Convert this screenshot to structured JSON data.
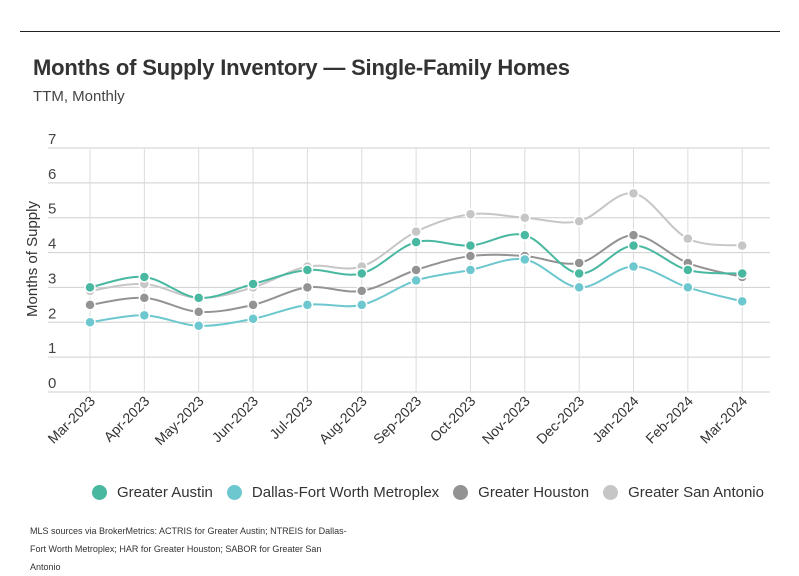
{
  "header": {
    "title": "Months of Supply Inventory — Single-Family Homes",
    "subtitle": "TTM, Monthly"
  },
  "legend": [
    {
      "name": "Greater Austin",
      "color": "#49b8a0"
    },
    {
      "name": "Dallas-Fort Worth Metroplex",
      "color": "#6cc7cf"
    },
    {
      "name": "Greater Houston",
      "color": "#939393"
    },
    {
      "name": "Greater San Antonio",
      "color": "#c6c6c6"
    }
  ],
  "footer": {
    "source": "MLS sources via BrokerMetrics: ACTRIS for Greater Austin; NTREIS for Dallas-Fort Worth Metroplex; HAR for Greater Houston; SABOR for Greater San Antonio"
  },
  "chart_data": {
    "type": "line",
    "title": "Months of Supply Inventory — Single-Family Homes",
    "subtitle": "TTM, Monthly",
    "xlabel": "",
    "ylabel": "Months of Supply",
    "ylim": [
      0,
      7
    ],
    "yticks": [
      "0",
      "1",
      "2",
      "3",
      "4",
      "5",
      "6",
      "7"
    ],
    "grid": true,
    "legend_position": "bottom",
    "categories": [
      "Mar-2023",
      "Apr-2023",
      "May-2023",
      "Jun-2023",
      "Jul-2023",
      "Aug-2023",
      "Sep-2023",
      "Oct-2023",
      "Nov-2023",
      "Dec-2023",
      "Jan-2024",
      "Feb-2024",
      "Mar-2024"
    ],
    "series": [
      {
        "name": "Greater San Antonio",
        "color": "#c6c6c6",
        "values": [
          2.9,
          3.1,
          2.7,
          3.0,
          3.6,
          3.6,
          4.6,
          5.1,
          5.0,
          4.9,
          5.7,
          4.4,
          4.2
        ]
      },
      {
        "name": "Greater Houston",
        "color": "#939393",
        "values": [
          2.5,
          2.7,
          2.3,
          2.5,
          3.0,
          2.9,
          3.5,
          3.9,
          3.9,
          3.7,
          4.5,
          3.7,
          3.3
        ]
      },
      {
        "name": "Dallas-Fort Worth Metroplex",
        "color": "#6cc7cf",
        "values": [
          2.0,
          2.2,
          1.9,
          2.1,
          2.5,
          2.5,
          3.2,
          3.5,
          3.8,
          3.0,
          3.6,
          3.0,
          2.6
        ]
      },
      {
        "name": "Greater Austin",
        "color": "#49b8a0",
        "values": [
          3.0,
          3.3,
          2.7,
          3.1,
          3.5,
          3.4,
          4.3,
          4.2,
          4.5,
          3.4,
          4.2,
          3.5,
          3.4
        ]
      }
    ]
  }
}
